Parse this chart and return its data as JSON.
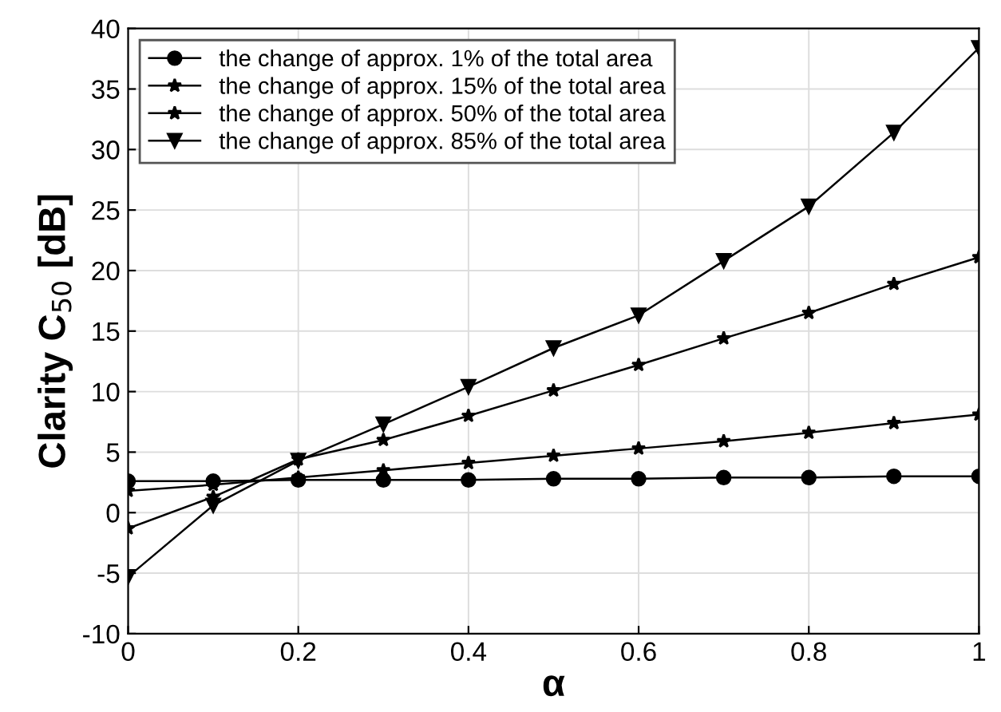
{
  "chart_data": {
    "type": "line",
    "xlabel": "α",
    "ylabel": "Clarity C$_{50}$ [dB]",
    "x": [
      0,
      0.1,
      0.2,
      0.3,
      0.4,
      0.5,
      0.6,
      0.7,
      0.8,
      0.9,
      1
    ],
    "series": [
      {
        "name": "the change of approx. 1% of the total area",
        "color": "#000000",
        "marker": "circle",
        "values": [
          2.6,
          2.6,
          2.7,
          2.7,
          2.7,
          2.8,
          2.8,
          2.9,
          2.9,
          3.0,
          3.0
        ]
      },
      {
        "name": "the change of approx. 15% of the total area",
        "color": "#000000",
        "marker": "star",
        "values": [
          1.8,
          2.3,
          2.9,
          3.5,
          4.1,
          4.7,
          5.3,
          5.9,
          6.6,
          7.4,
          8.1
        ]
      },
      {
        "name": "the change of approx. 50% of the total area",
        "color": "#000000",
        "marker": "star",
        "values": [
          -1.3,
          1.3,
          4.4,
          6.0,
          8.0,
          10.1,
          12.2,
          14.4,
          16.5,
          18.9,
          21.1
        ]
      },
      {
        "name": "the change of approx. 85% of the total area",
        "color": "#000000",
        "marker": "triangle",
        "values": [
          -5.3,
          0.6,
          4.3,
          7.3,
          10.4,
          13.6,
          16.3,
          20.8,
          25.3,
          31.4,
          38.4
        ]
      }
    ],
    "xlim": [
      0,
      1
    ],
    "ylim": [
      -10,
      40
    ],
    "xticks": [
      0,
      0.2,
      0.4,
      0.6,
      0.8,
      1
    ],
    "yticks": [
      -10,
      -5,
      0,
      5,
      10,
      15,
      20,
      25,
      30,
      35,
      40
    ],
    "grid": true,
    "legend": "top left",
    "line_style": "solid"
  }
}
